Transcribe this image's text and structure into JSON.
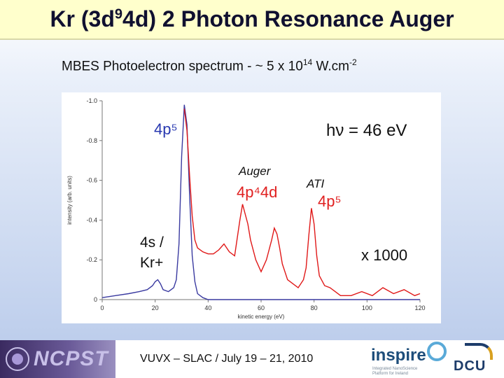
{
  "slide": {
    "title_pre": "Kr (3d",
    "title_sup": "9",
    "title_post": "4d) 2 Photon Resonance Auger",
    "subtitle_pre": "MBES Photoelectron spectrum - ~ 5 x 10",
    "subtitle_sup1": "14",
    "subtitle_mid": " W.cm",
    "subtitle_sup2": "-2",
    "footer": "VUVX – SLAC / July 19 – 21, 2010",
    "logo_left": "NCPST",
    "logo_mid": "inspire",
    "logo_mid_tag": "Integrated NanoScience Platform for Ireland",
    "logo_right": "DCU"
  },
  "colors": {
    "title_bar": "#ffffcc",
    "blue_trace": "#3a3aa0",
    "red_trace": "#e01818",
    "blue_label": "#2838b0",
    "red_label": "#e02020"
  },
  "chart_data": {
    "type": "line",
    "xlabel": "kinetic energy (eV)",
    "ylabel": "intensity (arb. units)",
    "xlim": [
      0,
      120
    ],
    "ylim": [
      0,
      -1.0
    ],
    "x_ticks": [
      "0",
      "20",
      "40",
      "60",
      "80",
      "100",
      "120"
    ],
    "y_ticks": [
      "0",
      "-0.2",
      "-0.4",
      "-0.6",
      "-0.8",
      "-1.0"
    ],
    "annotations": {
      "photon_energy": "hν = 46 eV",
      "main_peak": "4p⁵",
      "low_peak_1": "4s /",
      "low_peak_2": "Kr+",
      "auger_title": "Auger",
      "auger_config": "4p⁴4d",
      "ati_title": "ATI",
      "ati_config": "4p⁵",
      "scale": "x 1000"
    },
    "series": [
      {
        "color": "blue",
        "x": [
          0,
          5,
          10,
          14,
          17,
          19,
          20,
          21,
          22,
          23,
          25,
          27,
          28,
          29,
          30,
          31,
          32,
          33,
          34,
          35,
          36,
          38,
          40,
          45,
          50,
          60,
          80,
          100,
          120
        ],
        "y": [
          -0.01,
          -0.02,
          -0.03,
          -0.04,
          -0.05,
          -0.07,
          -0.09,
          -0.1,
          -0.08,
          -0.05,
          -0.04,
          -0.06,
          -0.1,
          -0.28,
          -0.72,
          -0.98,
          -0.88,
          -0.52,
          -0.22,
          -0.09,
          -0.03,
          -0.01,
          0.0,
          0.0,
          0.0,
          0.0,
          0.0,
          0.0,
          0.0
        ]
      },
      {
        "color": "red",
        "x": [
          31,
          32,
          33,
          34,
          35,
          36,
          38,
          40,
          42,
          44,
          46,
          48,
          50,
          52,
          53,
          54,
          55,
          56,
          58,
          60,
          62,
          64,
          65,
          66,
          67,
          68,
          70,
          72,
          74,
          76,
          77,
          78,
          79,
          80,
          81,
          82,
          84,
          86,
          88,
          90,
          94,
          98,
          102,
          106,
          110,
          114,
          118,
          120
        ],
        "y": [
          -0.96,
          -0.85,
          -0.62,
          -0.42,
          -0.3,
          -0.26,
          -0.24,
          -0.23,
          -0.23,
          -0.25,
          -0.28,
          -0.24,
          -0.22,
          -0.4,
          -0.48,
          -0.43,
          -0.38,
          -0.3,
          -0.2,
          -0.14,
          -0.2,
          -0.3,
          -0.36,
          -0.33,
          -0.26,
          -0.18,
          -0.1,
          -0.08,
          -0.06,
          -0.1,
          -0.16,
          -0.32,
          -0.46,
          -0.38,
          -0.22,
          -0.12,
          -0.07,
          -0.06,
          -0.04,
          -0.02,
          -0.02,
          -0.04,
          -0.02,
          -0.06,
          -0.03,
          -0.05,
          -0.02,
          -0.03
        ]
      }
    ]
  }
}
